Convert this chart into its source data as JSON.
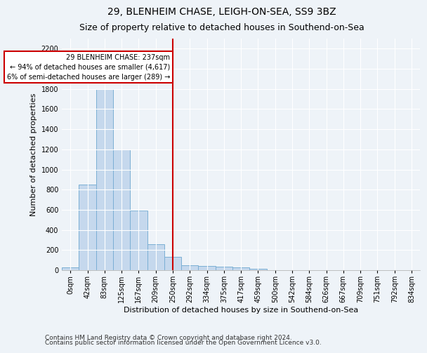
{
  "title": "29, BLENHEIM CHASE, LEIGH-ON-SEA, SS9 3BZ",
  "subtitle": "Size of property relative to detached houses in Southend-on-Sea",
  "xlabel": "Distribution of detached houses by size in Southend-on-Sea",
  "ylabel": "Number of detached properties",
  "footnote1": "Contains HM Land Registry data © Crown copyright and database right 2024.",
  "footnote2": "Contains public sector information licensed under the Open Government Licence v3.0.",
  "bar_labels": [
    "0sqm",
    "42sqm",
    "83sqm",
    "125sqm",
    "167sqm",
    "209sqm",
    "250sqm",
    "292sqm",
    "334sqm",
    "375sqm",
    "417sqm",
    "459sqm",
    "500sqm",
    "542sqm",
    "584sqm",
    "626sqm",
    "667sqm",
    "709sqm",
    "751sqm",
    "792sqm",
    "834sqm"
  ],
  "bar_values": [
    25,
    850,
    1800,
    1200,
    590,
    260,
    130,
    50,
    45,
    35,
    30,
    15,
    0,
    0,
    0,
    0,
    0,
    0,
    0,
    0,
    0
  ],
  "bar_color": "#c5d8ed",
  "bar_edgecolor": "#7bafd4",
  "vline_color": "#cc0000",
  "annotation_text": "29 BLENHEIM CHASE: 237sqm\n← 94% of detached houses are smaller (4,617)\n6% of semi-detached houses are larger (289) →",
  "annotation_box_color": "#cc0000",
  "ylim": [
    0,
    2300
  ],
  "yticks": [
    0,
    200,
    400,
    600,
    800,
    1000,
    1200,
    1400,
    1600,
    1800,
    2000,
    2200
  ],
  "bg_color": "#eef3f8",
  "grid_color": "#ffffff",
  "title_fontsize": 10,
  "subtitle_fontsize": 9,
  "axis_label_fontsize": 8,
  "tick_fontsize": 7,
  "footnote_fontsize": 6.5
}
